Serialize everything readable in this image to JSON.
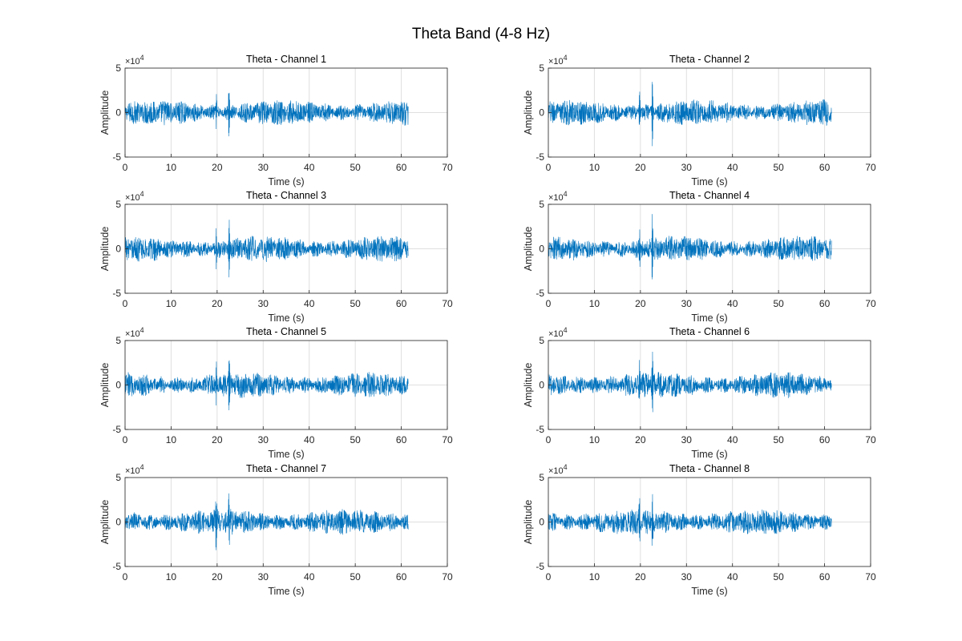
{
  "figure": {
    "title": "Theta Band (4-8 Hz)",
    "background": "#ffffff",
    "trace_color": "#0072bd",
    "grid_color": "#dfdfdf",
    "axis_color": "#262626"
  },
  "chart_data": [
    {
      "type": "line",
      "title": "Theta - Channel 1",
      "xlabel": "Time (s)",
      "ylabel": "Amplitude",
      "xlim": [
        0,
        70
      ],
      "ylim": [
        -50000,
        50000
      ],
      "xticks": [
        0,
        10,
        20,
        30,
        40,
        50,
        60,
        70
      ],
      "yticks": [
        -5,
        0,
        5
      ],
      "y_exponent": "×10^4",
      "grid": true,
      "series": [
        {
          "x_range": [
            0,
            61.5
          ],
          "baseline": 0,
          "typical_amplitude": 12000,
          "events": [
            {
              "t": 19.8,
              "peak": 20000,
              "trough": -18000
            },
            {
              "t": 22.6,
              "peak": 32000,
              "trough": -30000
            }
          ]
        }
      ]
    },
    {
      "type": "line",
      "title": "Theta - Channel 2",
      "xlabel": "Time (s)",
      "ylabel": "Amplitude",
      "xlim": [
        0,
        70
      ],
      "ylim": [
        -50000,
        50000
      ],
      "xticks": [
        0,
        10,
        20,
        30,
        40,
        50,
        60,
        70
      ],
      "yticks": [
        -5,
        0,
        5
      ],
      "y_exponent": "×10^4",
      "grid": true,
      "series": [
        {
          "x_range": [
            0,
            61.5
          ],
          "baseline": 0,
          "typical_amplitude": 12000,
          "events": [
            {
              "t": 19.8,
              "peak": 22000,
              "trough": -17000
            },
            {
              "t": 22.6,
              "peak": 35000,
              "trough": -30000
            }
          ]
        }
      ]
    },
    {
      "type": "line",
      "title": "Theta - Channel 3",
      "xlabel": "Time (s)",
      "ylabel": "Amplitude",
      "xlim": [
        0,
        70
      ],
      "ylim": [
        -50000,
        50000
      ],
      "xticks": [
        0,
        10,
        20,
        30,
        40,
        50,
        60,
        70
      ],
      "yticks": [
        -5,
        0,
        5
      ],
      "y_exponent": "×10^4",
      "grid": true,
      "series": [
        {
          "x_range": [
            0,
            61.5
          ],
          "baseline": 0,
          "typical_amplitude": 12000,
          "events": [
            {
              "t": 19.8,
              "peak": 20000,
              "trough": -20000
            },
            {
              "t": 22.6,
              "peak": 30000,
              "trough": -27000
            }
          ]
        }
      ]
    },
    {
      "type": "line",
      "title": "Theta - Channel 4",
      "xlabel": "Time (s)",
      "ylabel": "Amplitude",
      "xlim": [
        0,
        70
      ],
      "ylim": [
        -50000,
        50000
      ],
      "xticks": [
        0,
        10,
        20,
        30,
        40,
        50,
        60,
        70
      ],
      "yticks": [
        -5,
        0,
        5
      ],
      "y_exponent": "×10^4",
      "grid": true,
      "series": [
        {
          "x_range": [
            0,
            61.5
          ],
          "baseline": 0,
          "typical_amplitude": 12000,
          "events": [
            {
              "t": 19.8,
              "peak": 22000,
              "trough": -18000
            },
            {
              "t": 22.6,
              "peak": 33000,
              "trough": -30000
            }
          ]
        }
      ]
    },
    {
      "type": "line",
      "title": "Theta - Channel 5",
      "xlabel": "Time (s)",
      "ylabel": "Amplitude",
      "xlim": [
        0,
        70
      ],
      "ylim": [
        -50000,
        50000
      ],
      "xticks": [
        0,
        10,
        20,
        30,
        40,
        50,
        60,
        70
      ],
      "yticks": [
        -5,
        0,
        5
      ],
      "y_exponent": "×10^4",
      "grid": true,
      "series": [
        {
          "x_range": [
            0,
            61.5
          ],
          "baseline": 0,
          "typical_amplitude": 12000,
          "events": [
            {
              "t": 19.8,
              "peak": 22000,
              "trough": -18000
            },
            {
              "t": 22.6,
              "peak": 31000,
              "trough": -28000
            }
          ]
        }
      ]
    },
    {
      "type": "line",
      "title": "Theta - Channel 6",
      "xlabel": "Time (s)",
      "ylabel": "Amplitude",
      "xlim": [
        0,
        70
      ],
      "ylim": [
        -50000,
        50000
      ],
      "xticks": [
        0,
        10,
        20,
        30,
        40,
        50,
        60,
        70
      ],
      "yticks": [
        -5,
        0,
        5
      ],
      "y_exponent": "×10^4",
      "grid": true,
      "series": [
        {
          "x_range": [
            0,
            61.5
          ],
          "baseline": 0,
          "typical_amplitude": 12000,
          "events": [
            {
              "t": 19.8,
              "peak": 22000,
              "trough": -19000
            },
            {
              "t": 22.6,
              "peak": 33000,
              "trough": -29000
            }
          ]
        }
      ]
    },
    {
      "type": "line",
      "title": "Theta - Channel 7",
      "xlabel": "Time (s)",
      "ylabel": "Amplitude",
      "xlim": [
        0,
        70
      ],
      "ylim": [
        -50000,
        50000
      ],
      "xticks": [
        0,
        10,
        20,
        30,
        40,
        50,
        60,
        70
      ],
      "yticks": [
        -5,
        0,
        5
      ],
      "y_exponent": "×10^4",
      "grid": true,
      "series": [
        {
          "x_range": [
            0,
            61.5
          ],
          "baseline": 0,
          "typical_amplitude": 12000,
          "events": [
            {
              "t": 19.8,
              "peak": 20000,
              "trough": -19000
            },
            {
              "t": 22.6,
              "peak": 32000,
              "trough": -29000
            }
          ]
        }
      ]
    },
    {
      "type": "line",
      "title": "Theta - Channel 8",
      "xlabel": "Time (s)",
      "ylabel": "Amplitude",
      "xlim": [
        0,
        70
      ],
      "ylim": [
        -50000,
        50000
      ],
      "xticks": [
        0,
        10,
        20,
        30,
        40,
        50,
        60,
        70
      ],
      "yticks": [
        -5,
        0,
        5
      ],
      "y_exponent": "×10^4",
      "grid": true,
      "series": [
        {
          "x_range": [
            0,
            61.5
          ],
          "baseline": 0,
          "typical_amplitude": 12000,
          "events": [
            {
              "t": 19.8,
              "peak": 22000,
              "trough": -18000
            },
            {
              "t": 22.6,
              "peak": 34000,
              "trough": -30000
            }
          ]
        }
      ]
    }
  ]
}
